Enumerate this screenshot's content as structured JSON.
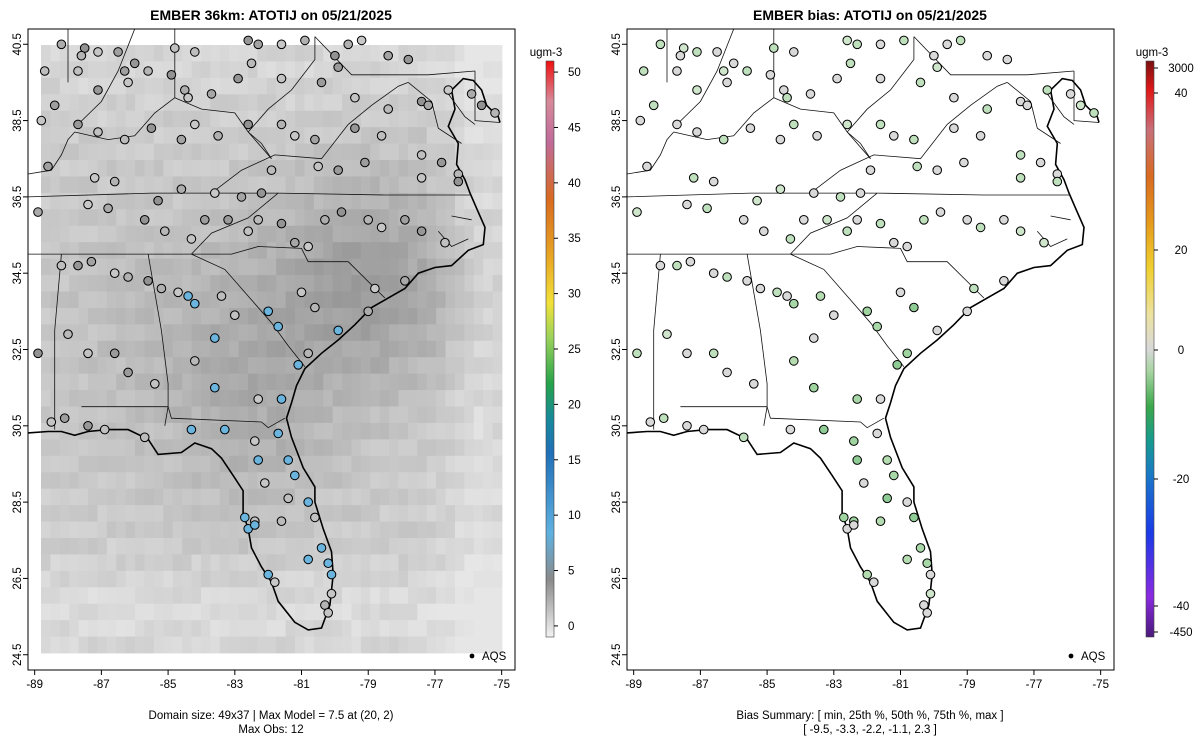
{
  "chart_data": [
    {
      "type": "heatmap",
      "title": "EMBER 36km: ATOTIJ on 05/21/2025",
      "x_ticks": [
        "-89",
        "-87",
        "-85",
        "-83",
        "-81",
        "-79",
        "-77",
        "-75"
      ],
      "y_ticks": [
        "24.5",
        "26.5",
        "28.5",
        "30.5",
        "32.5",
        "34.5",
        "36.5",
        "38.5",
        "40.5"
      ],
      "xlim": [
        -89.2,
        -74.6
      ],
      "ylim": [
        24.1,
        40.9
      ],
      "colorbar": {
        "unit": "ugm-3",
        "range": [
          -1,
          51
        ],
        "ticks": [
          "0",
          "5",
          "10",
          "15",
          "20",
          "25",
          "30",
          "35",
          "40",
          "45",
          "50"
        ]
      },
      "legend": "AQS",
      "footer": [
        "Domain size: 49x37 | Max Model = 7.5 at (20, 2)",
        "Max Obs: 12"
      ],
      "model_field_range": [
        0,
        7.5
      ],
      "observation_range": [
        0,
        12
      ]
    },
    {
      "type": "scatter",
      "title": "EMBER bias: ATOTIJ on 05/21/2025",
      "x_ticks": [
        "-89",
        "-87",
        "-85",
        "-83",
        "-81",
        "-79",
        "-77",
        "-75"
      ],
      "y_ticks": [
        "24.5",
        "26.5",
        "28.5",
        "30.5",
        "32.5",
        "34.5",
        "36.5",
        "38.5",
        "40.5"
      ],
      "xlim": [
        -89.2,
        -74.6
      ],
      "ylim": [
        24.1,
        40.9
      ],
      "colorbar": {
        "unit": "ugm-3",
        "ticks": [
          "3000",
          "40",
          "20",
          "0",
          "-20",
          "-40",
          "-450"
        ]
      },
      "legend": "AQS",
      "footer": [
        "Bias Summary: [ min, 25th %, 50th %, 75th %, max ]",
        "[ -9.5,   -3.3,   -2.2,   -1.1,   2.3 ]"
      ],
      "bias_summary": {
        "min": -9.5,
        "p25": -3.3,
        "p50": -2.2,
        "p75": -1.1,
        "max": 2.3
      }
    }
  ]
}
